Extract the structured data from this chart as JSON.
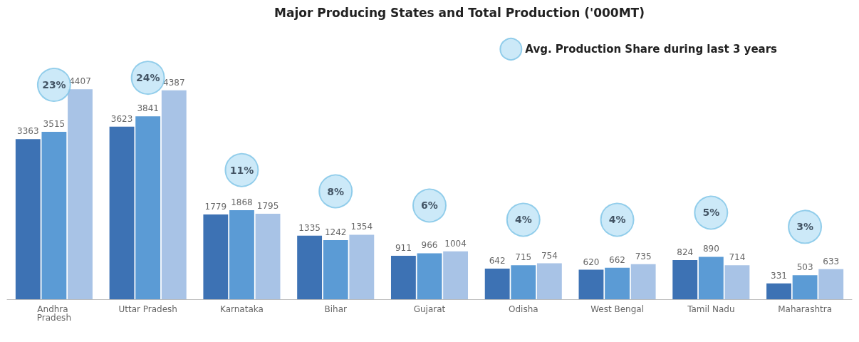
{
  "chart_data": {
    "type": "bar",
    "title": "Major Producing States and Total Production ('000MT)",
    "categories": [
      "Andhra Pradesh",
      "Uttar Pradesh",
      "Karnataka",
      "Bihar",
      "Gujarat",
      "Odisha",
      "West Bengal",
      "Tamil Nadu",
      "Maharashtra"
    ],
    "series": [
      {
        "color": "#3d72b4",
        "values": [
          3363,
          3623,
          1779,
          1335,
          911,
          642,
          620,
          824,
          331
        ]
      },
      {
        "color": "#5b9bd5",
        "values": [
          3515,
          3841,
          1868,
          1242,
          966,
          715,
          662,
          890,
          503
        ]
      },
      {
        "color": "#a8c3e6",
        "values": [
          4407,
          4387,
          1795,
          1354,
          1004,
          754,
          735,
          714,
          633
        ]
      },
      {
        "type": "scatter",
        "axis": "y2",
        "name": "Avg. Production Share during last 3 years",
        "color": "#bfe4f6",
        "values": [
          23,
          24,
          11,
          8,
          6,
          4,
          4,
          5,
          3
        ],
        "value_labels": [
          "23%",
          "24%",
          "11%",
          "8%",
          "6%",
          "4%",
          "4%",
          "5%",
          "3%"
        ]
      }
    ],
    "data_labels": true,
    "tick_labels": "x",
    "grid": false,
    "legend": "top right",
    "marker": "circle"
  }
}
